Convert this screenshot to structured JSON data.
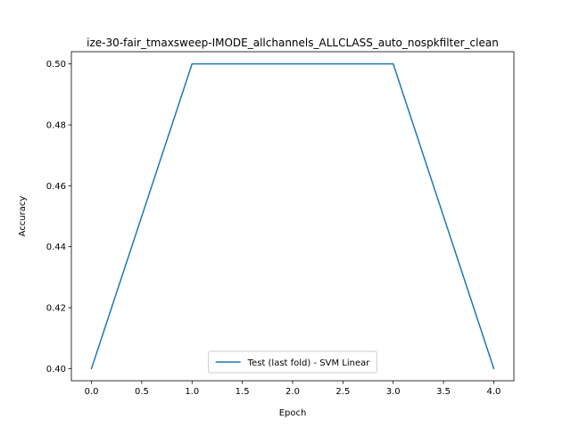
{
  "chart_data": {
    "type": "line",
    "title": "ize-30-fair_tmaxsweep-IMODE_allchannels_ALLCLASS_auto_nospkfilter_clean",
    "xlabel": "Epoch",
    "ylabel": "Accuracy",
    "xlim": [
      -0.2,
      4.2
    ],
    "ylim": [
      0.396,
      0.504
    ],
    "xticks": [
      0.0,
      0.5,
      1.0,
      1.5,
      2.0,
      2.5,
      3.0,
      3.5,
      4.0
    ],
    "xtick_labels": [
      "0.0",
      "0.5",
      "1.0",
      "1.5",
      "2.0",
      "2.5",
      "3.0",
      "3.5",
      "4.0"
    ],
    "yticks": [
      0.4,
      0.42,
      0.44,
      0.46,
      0.48,
      0.5
    ],
    "ytick_labels": [
      "0.40",
      "0.42",
      "0.44",
      "0.46",
      "0.48",
      "0.50"
    ],
    "grid": false,
    "legend_position": "lower center",
    "series": [
      {
        "name": "Test (last fold) - SVM Linear",
        "color": "#1f77b4",
        "x": [
          0,
          1,
          2,
          3,
          4
        ],
        "y": [
          0.4,
          0.5,
          0.5,
          0.5,
          0.4
        ]
      }
    ]
  }
}
